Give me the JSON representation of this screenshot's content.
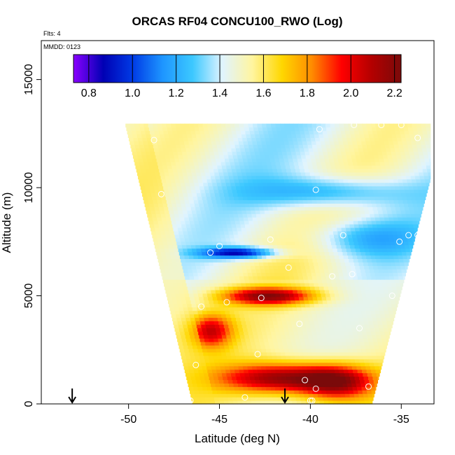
{
  "chart_data": {
    "type": "heatmap",
    "title": "ORCAS RF04 CONCU100_RWO (Log)",
    "flights_label": "Flts: 4",
    "mmdd_label": "MMDD: 0123",
    "xlabel": "Latitude (deg N)",
    "ylabel": "Altitude (m)",
    "xlim": [
      -54.8,
      -33.2
    ],
    "ylim": [
      0,
      16800
    ],
    "x_ticks": [
      -50,
      -45,
      -40,
      -35
    ],
    "x_tick_labels": [
      "-50",
      "-45",
      "-40",
      "-35"
    ],
    "y_ticks": [
      0,
      5000,
      10000,
      15000
    ],
    "y_tick_labels": [
      "0",
      "5000",
      "10000",
      "15000"
    ],
    "colorbar": {
      "min": 0.73,
      "max": 2.23,
      "ticks": [
        0.8,
        1.0,
        1.2,
        1.4,
        1.6,
        1.8,
        2.0,
        2.2
      ],
      "tick_labels": [
        "0.8",
        "1.0",
        "1.2",
        "1.4",
        "1.6",
        "1.8",
        "2.0",
        "2.2"
      ],
      "colors": [
        "#8a00ff",
        "#0000b4",
        "#003ce6",
        "#1e96ff",
        "#3cc8ff",
        "#e0f4ff",
        "#fff5a0",
        "#ffd700",
        "#ff8c00",
        "#ff0000",
        "#b40000",
        "#7a0a0a"
      ]
    },
    "coverage": {
      "bottom_left_lat": -46.5,
      "bottom_right_lat": -36.6,
      "top_left_lat": -50.2,
      "top_right_lat": -33.4,
      "top_altitude": 12900
    },
    "features": [
      {
        "lat": -41.5,
        "alt": 1200,
        "value": 2.1,
        "spread_lat": 3.5,
        "spread_alt": 700
      },
      {
        "lat": -38.5,
        "alt": 1000,
        "value": 1.95,
        "spread_lat": 2.0,
        "spread_alt": 800
      },
      {
        "lat": -45.5,
        "alt": 3400,
        "value": 1.95,
        "spread_lat": 1.2,
        "spread_alt": 800
      },
      {
        "lat": -42.3,
        "alt": 5000,
        "value": 2.1,
        "spread_lat": 2.5,
        "spread_alt": 400
      },
      {
        "lat": -44.0,
        "alt": 7000,
        "value": 0.85,
        "spread_lat": 2.0,
        "spread_alt": 250
      },
      {
        "lat": -39.0,
        "alt": 9800,
        "value": 1.15,
        "spread_lat": 4.0,
        "spread_alt": 700
      },
      {
        "lat": -37.0,
        "alt": 7700,
        "value": 1.2,
        "spread_lat": 3.0,
        "spread_alt": 900
      }
    ],
    "observations": [
      {
        "lat": -51.7,
        "alt": 12400
      },
      {
        "lat": -48.6,
        "alt": 12200
      },
      {
        "lat": -48.2,
        "alt": 9700
      },
      {
        "lat": -45.5,
        "alt": 7000
      },
      {
        "lat": -45.0,
        "alt": 7300
      },
      {
        "lat": -42.2,
        "alt": 7600
      },
      {
        "lat": -41.2,
        "alt": 6300
      },
      {
        "lat": -39.7,
        "alt": 9900
      },
      {
        "lat": -38.8,
        "alt": 5900
      },
      {
        "lat": -38.2,
        "alt": 7800
      },
      {
        "lat": -37.7,
        "alt": 6000
      },
      {
        "lat": -35.1,
        "alt": 7500
      },
      {
        "lat": -34.6,
        "alt": 7800
      },
      {
        "lat": -34.1,
        "alt": 7800
      },
      {
        "lat": -33.5,
        "alt": 8200
      },
      {
        "lat": -35.5,
        "alt": 5000
      },
      {
        "lat": -42.7,
        "alt": 4900
      },
      {
        "lat": -44.6,
        "alt": 4700
      },
      {
        "lat": -46.0,
        "alt": 4500
      },
      {
        "lat": -40.6,
        "alt": 3700
      },
      {
        "lat": -37.3,
        "alt": 3500
      },
      {
        "lat": -42.9,
        "alt": 2300
      },
      {
        "lat": -46.3,
        "alt": 1800
      },
      {
        "lat": -40.3,
        "alt": 1100
      },
      {
        "lat": -39.7,
        "alt": 700
      },
      {
        "lat": -36.8,
        "alt": 800
      },
      {
        "lat": -43.6,
        "alt": 300
      },
      {
        "lat": -46.6,
        "alt": 150
      },
      {
        "lat": -40.0,
        "alt": 150
      },
      {
        "lat": -39.9,
        "alt": 150
      },
      {
        "lat": -37.6,
        "alt": 12900
      },
      {
        "lat": -36.1,
        "alt": 12900
      },
      {
        "lat": -35.0,
        "alt": 12900
      },
      {
        "lat": -39.5,
        "alt": 12700
      },
      {
        "lat": -34.1,
        "alt": 12300
      }
    ],
    "arrows_lat": [
      -53.1,
      -41.4
    ]
  }
}
